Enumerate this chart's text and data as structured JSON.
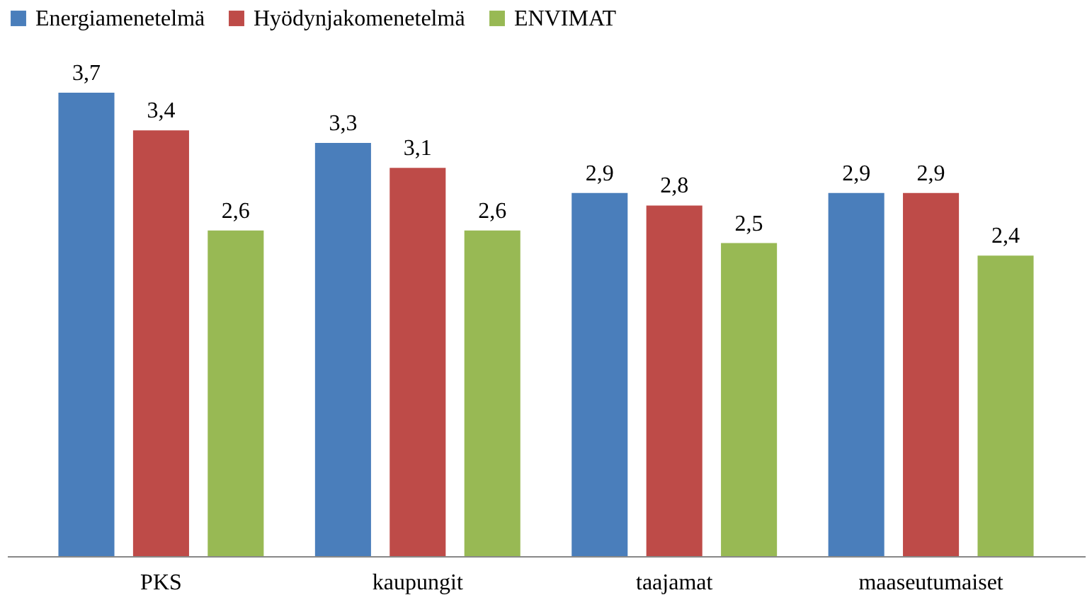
{
  "chart_data": {
    "type": "bar",
    "categories": [
      "PKS",
      "kaupungit",
      "taajamat",
      "maaseutumaiset"
    ],
    "series": [
      {
        "name": "Energiamenetelmä",
        "color": "#4a7ebb",
        "values": [
          3.7,
          3.3,
          2.9,
          2.9
        ],
        "value_labels": [
          "3,7",
          "3,3",
          "2,9",
          "2,9"
        ]
      },
      {
        "name": "Hyödynjakomenetelmä",
        "color": "#be4b48",
        "values": [
          3.4,
          3.1,
          2.8,
          2.9
        ],
        "value_labels": [
          "3,4",
          "3,1",
          "2,8",
          "2,9"
        ]
      },
      {
        "name": "ENVIMAT",
        "color": "#98b954",
        "values": [
          2.6,
          2.6,
          2.5,
          2.4
        ],
        "value_labels": [
          "2,6",
          "2,6",
          "2,5",
          "2,4"
        ]
      }
    ],
    "grid": false,
    "legend": "top",
    "tick_labels": "x"
  }
}
